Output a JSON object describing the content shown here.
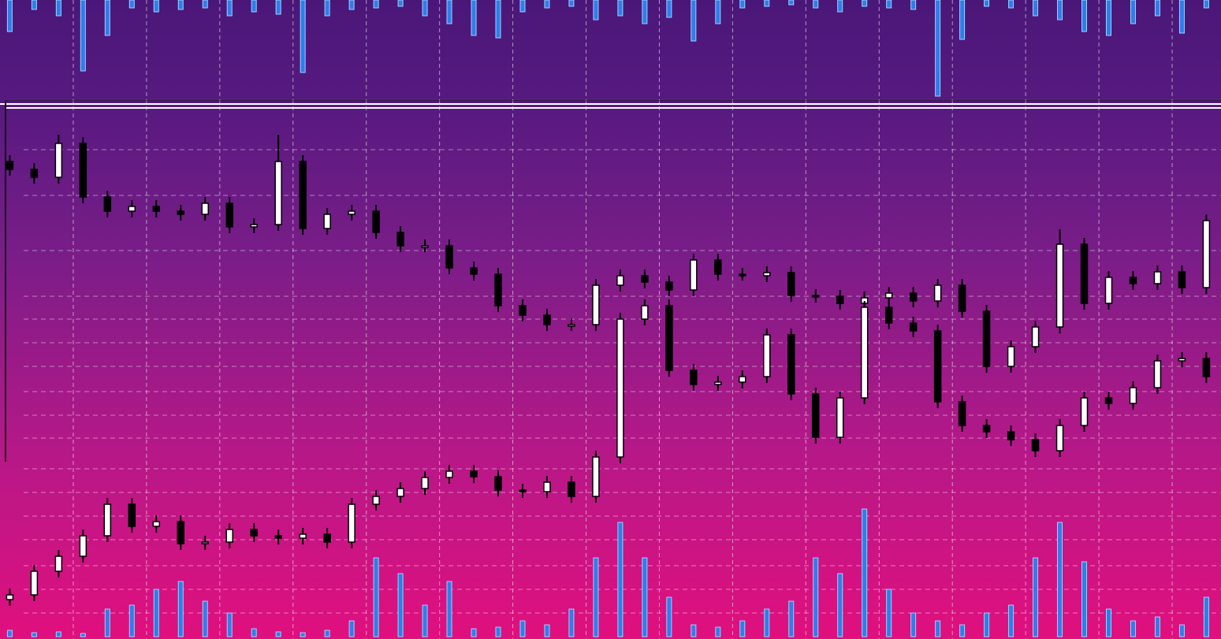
{
  "chart_data": [
    {
      "type": "candlestick",
      "xlim": [
        0,
        50
      ],
      "ylim": [
        0,
        811
      ],
      "xticks": [
        3,
        6,
        9,
        12,
        15,
        18,
        21,
        24,
        27,
        30,
        33,
        36,
        39,
        42,
        45,
        48
      ],
      "yticks": [
        621,
        563,
        493,
        435,
        406,
        376,
        346,
        314,
        284,
        255,
        216,
        186,
        156,
        126,
        93,
        63,
        33
      ],
      "grid": true,
      "up_color": "#ffffff",
      "down_color": "#000000",
      "series": [
        {
          "close": [
            596,
            586,
            629,
            561,
            543,
            549,
            543,
            539,
            553,
            523,
            526,
            606,
            521,
            539,
            543,
            516,
            499,
            499,
            471,
            463,
            423,
            411,
            399,
            399,
            449,
            461,
            453,
            443,
            481,
            463,
            461,
            465,
            436,
            435,
            426,
            433,
            439,
            429,
            449,
            416,
            346,
            371,
            396,
            501,
            426,
            459,
            451,
            466,
            446,
            531
          ],
          "open": [
            606,
            596,
            586,
            629,
            561,
            543,
            549,
            543,
            539,
            553,
            523,
            526,
            606,
            521,
            539,
            543,
            516,
            499,
            499,
            471,
            463,
            423,
            411,
            399,
            399,
            449,
            461,
            453,
            443,
            481,
            463,
            461,
            465,
            436,
            435,
            426,
            433,
            439,
            429,
            449,
            416,
            346,
            371,
            396,
            501,
            426,
            459,
            451,
            466,
            446
          ],
          "high": [
            614,
            604,
            640,
            637,
            569,
            557,
            557,
            551,
            561,
            561,
            534,
            640,
            614,
            547,
            551,
            551,
            524,
            507,
            507,
            479,
            471,
            431,
            419,
            407,
            457,
            469,
            469,
            461,
            489,
            489,
            471,
            473,
            473,
            444,
            443,
            441,
            447,
            447,
            457,
            457,
            424,
            379,
            404,
            520,
            509,
            467,
            467,
            474,
            474,
            539
          ],
          "low": [
            588,
            578,
            578,
            553,
            535,
            535,
            535,
            531,
            531,
            515,
            515,
            518,
            513,
            513,
            531,
            508,
            491,
            491,
            463,
            455,
            415,
            403,
            391,
            391,
            391,
            441,
            445,
            435,
            435,
            455,
            455,
            453,
            428,
            427,
            418,
            418,
            425,
            421,
            421,
            408,
            338,
            338,
            363,
            388,
            418,
            418,
            443,
            443,
            438,
            438
          ]
        },
        {
          "close": [
            56,
            86,
            105,
            131,
            171,
            143,
            149,
            121,
            123,
            139,
            131,
            128,
            133,
            123,
            171,
            181,
            191,
            205,
            213,
            206,
            189,
            187,
            199,
            181,
            231,
            406,
            423,
            341,
            323,
            326,
            333,
            386,
            311,
            256,
            306,
            421,
            401,
            391,
            301,
            271,
            263,
            253,
            239,
            271,
            306,
            299,
            319,
            353,
            356,
            333
          ],
          "open": [
            50,
            56,
            86,
            105,
            131,
            171,
            143,
            149,
            121,
            123,
            139,
            131,
            128,
            133,
            123,
            171,
            181,
            191,
            205,
            213,
            206,
            189,
            187,
            199,
            181,
            231,
            406,
            423,
            341,
            323,
            326,
            333,
            386,
            311,
            256,
            306,
            421,
            401,
            391,
            301,
            271,
            263,
            253,
            239,
            271,
            306,
            299,
            319,
            353,
            356
          ],
          "high": [
            64,
            94,
            113,
            139,
            179,
            179,
            157,
            157,
            131,
            147,
            147,
            139,
            141,
            141,
            179,
            189,
            199,
            213,
            221,
            221,
            214,
            197,
            207,
            207,
            239,
            414,
            431,
            431,
            349,
            334,
            341,
            394,
            394,
            319,
            314,
            429,
            429,
            409,
            399,
            309,
            279,
            271,
            261,
            279,
            314,
            314,
            327,
            361,
            364,
            364
          ],
          "low": [
            42,
            48,
            78,
            97,
            123,
            135,
            135,
            113,
            113,
            115,
            123,
            120,
            120,
            115,
            115,
            163,
            173,
            183,
            197,
            198,
            181,
            179,
            179,
            173,
            173,
            223,
            398,
            333,
            315,
            315,
            318,
            325,
            303,
            248,
            248,
            298,
            393,
            383,
            293,
            263,
            255,
            245,
            231,
            231,
            263,
            291,
            291,
            311,
            345,
            325
          ]
        }
      ]
    },
    {
      "type": "volume",
      "direction": "down",
      "ylim": [
        0,
        135
      ],
      "color": "#2f7de8",
      "values": [
        40,
        12,
        20,
        90,
        45,
        10,
        15,
        12,
        10,
        20,
        15,
        18,
        92,
        20,
        12,
        10,
        8,
        20,
        30,
        45,
        48,
        15,
        10,
        8,
        25,
        20,
        30,
        22,
        52,
        30,
        10,
        8,
        6,
        10,
        15,
        8,
        10,
        12,
        122,
        50,
        8,
        10,
        20,
        25,
        40,
        45,
        30,
        20,
        42,
        10
      ]
    },
    {
      "type": "volume",
      "direction": "up",
      "ylim": [
        0,
        200
      ],
      "color": "#2f7de8",
      "values": [
        8,
        5,
        6,
        4,
        35,
        40,
        60,
        70,
        45,
        30,
        10,
        6,
        5,
        8,
        20,
        100,
        80,
        40,
        70,
        10,
        12,
        20,
        15,
        35,
        100,
        145,
        100,
        50,
        15,
        12,
        20,
        35,
        45,
        100,
        80,
        162,
        60,
        30,
        20,
        15,
        30,
        40,
        100,
        145,
        95,
        35,
        20,
        25,
        15,
        50
      ]
    }
  ]
}
